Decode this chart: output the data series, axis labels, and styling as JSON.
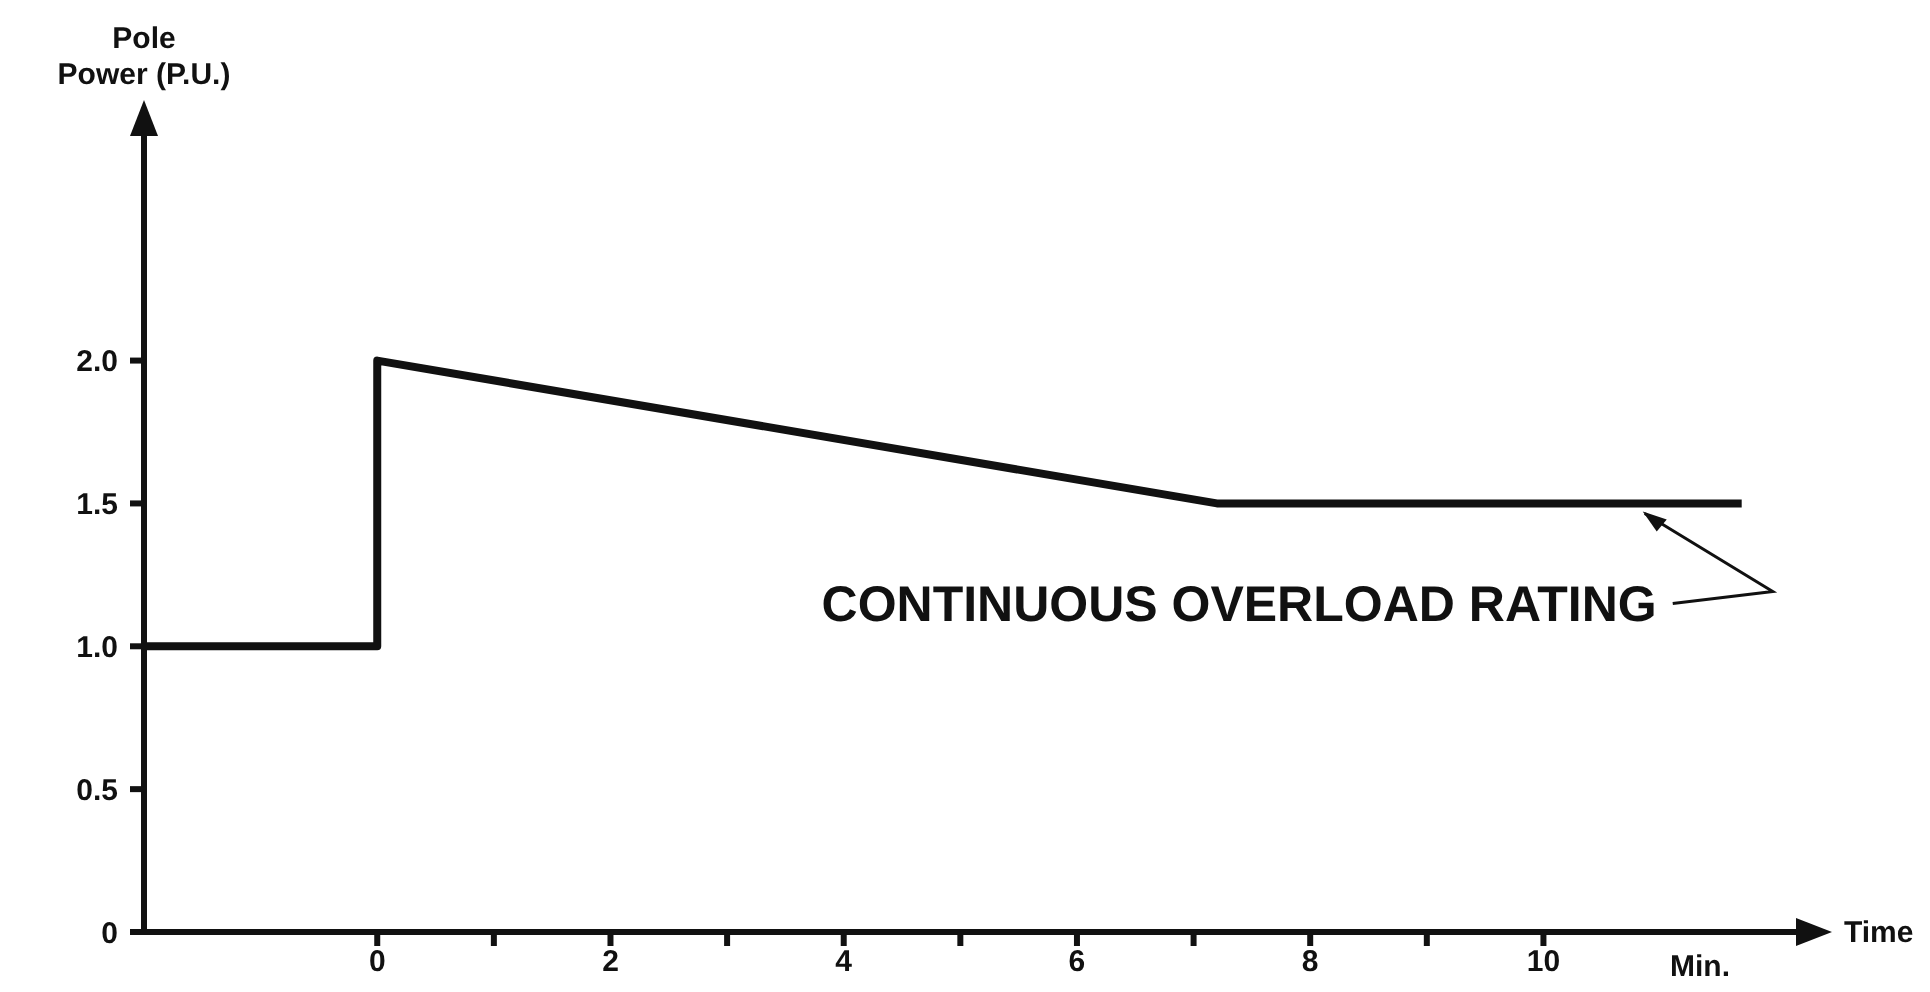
{
  "chart_data": {
    "type": "line",
    "ylabel": "Pole\nPower (P.U.)",
    "xlabel": "Time",
    "annotations": [
      {
        "text": "CONTINUOUS OVERLOAD RATING",
        "x": 10.8,
        "y": 1.5
      },
      "Min."
    ],
    "series": [
      {
        "color": "#111111",
        "x": [
          -2,
          0,
          0,
          7.2,
          11.7
        ],
        "values": [
          1,
          1,
          2,
          1.5,
          1.5
        ]
      }
    ],
    "xlim": [
      -2,
      12.2
    ],
    "xticks": [
      0,
      {
        "value": 1,
        "label": null
      },
      2,
      {
        "value": 3,
        "label": null
      },
      4,
      {
        "value": 5,
        "label": null
      },
      6,
      {
        "value": 7,
        "label": null
      },
      8,
      {
        "value": 9,
        "label": null
      },
      10
    ],
    "ylim": [
      0,
      2.8
    ],
    "yticks": [
      0,
      0.5,
      {
        "value": 1,
        "label": "1.0"
      },
      1.5,
      {
        "value": 2,
        "label": "2.0"
      }
    ],
    "grid": false,
    "marker": "none",
    "line_style": "solid"
  }
}
